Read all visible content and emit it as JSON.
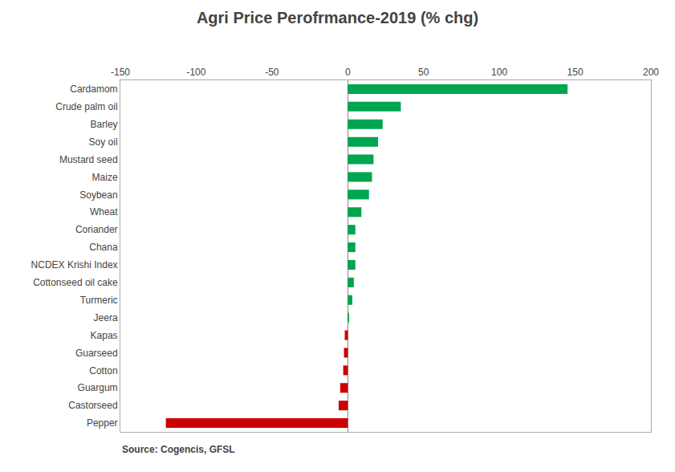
{
  "chart_data": {
    "type": "bar",
    "orientation": "horizontal",
    "title": "Agri Price Perofrmance-2019 (% chg)",
    "annotations": [
      "Source: Cogencis, GFSL"
    ],
    "categories": [
      "Cardamom",
      "Crude palm oil",
      "Barley",
      "Soy oil",
      "Mustard seed",
      "Maize",
      "Soybean",
      "Wheat",
      "Coriander",
      "Chana",
      "NCDEX Krishi Index",
      "Cottonseed oil cake",
      "Turmeric",
      "Jeera",
      "Kapas",
      "Guarseed",
      "Cotton",
      "Guargum",
      "Castorseed",
      "Pepper"
    ],
    "values": [
      145,
      35,
      23,
      20,
      17,
      16,
      14,
      9,
      5,
      5,
      5,
      4,
      3,
      0.5,
      -2,
      -2.5,
      -3,
      -5,
      -6,
      -120
    ],
    "colors": [
      "#00A550",
      "#00A550",
      "#00A550",
      "#00A550",
      "#00A550",
      "#00A550",
      "#00A550",
      "#00A550",
      "#00A550",
      "#00A550",
      "#00A550",
      "#00A550",
      "#00A550",
      "#00A550",
      "#CC0000",
      "#CC0000",
      "#CC0000",
      "#CC0000",
      "#CC0000",
      "#CC0000"
    ],
    "xlim": [
      -150,
      200
    ],
    "xticks": [
      -150,
      -100,
      -50,
      0,
      50,
      100,
      150,
      200
    ],
    "grid": false
  }
}
